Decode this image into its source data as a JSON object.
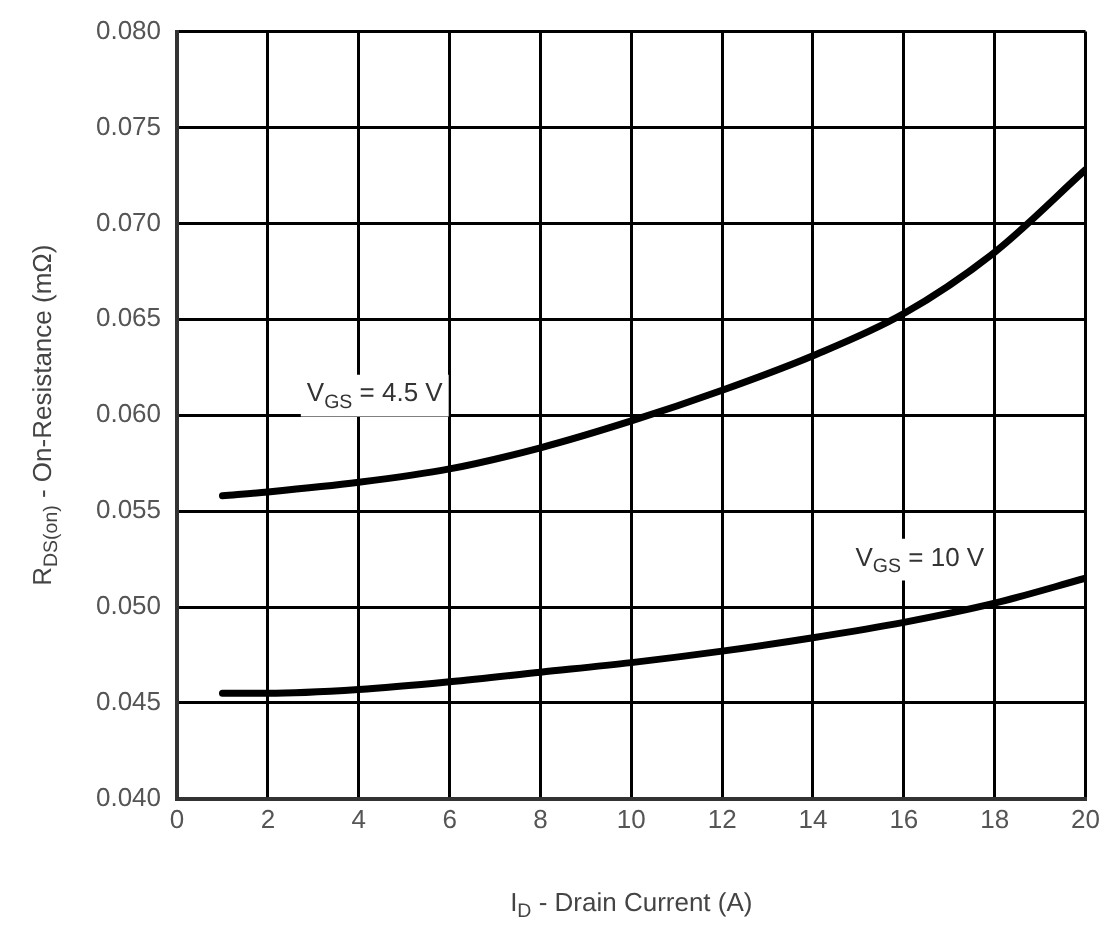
{
  "chart_data": {
    "type": "line",
    "xlabel": "I$_{D}$ - Drain Current (A)",
    "ylabel": "R$_{DS(on)}$ - On-Resistance (mΩ)",
    "x": [
      1,
      2,
      4,
      6,
      8,
      10,
      12,
      14,
      16,
      18,
      20
    ],
    "series": [
      {
        "name": "V$_{GS}$ = 4.5 V",
        "color": "#000000",
        "values": [
          0.0558,
          0.056,
          0.0565,
          0.0572,
          0.0583,
          0.0597,
          0.0613,
          0.0631,
          0.0653,
          0.0685,
          0.0728
        ]
      },
      {
        "name": "V$_{GS}$ = 10 V",
        "color": "#000000",
        "values": [
          0.0455,
          0.0455,
          0.0457,
          0.0461,
          0.0466,
          0.0471,
          0.0477,
          0.0484,
          0.0492,
          0.0502,
          0.0515
        ]
      }
    ],
    "xlim": [
      0,
      20
    ],
    "xticks": [
      0,
      2,
      4,
      6,
      8,
      10,
      12,
      14,
      16,
      18,
      20
    ],
    "ylim": [
      0.04,
      0.08
    ],
    "yticks": [
      {
        "value": 0.04,
        "label": "0.040"
      },
      {
        "value": 0.045,
        "label": "0.045"
      },
      {
        "value": 0.05,
        "label": "0.050"
      },
      {
        "value": 0.055,
        "label": "0.055"
      },
      {
        "value": 0.06,
        "label": "0.060"
      },
      {
        "value": 0.065,
        "label": "0.065"
      },
      {
        "value": 0.07,
        "label": "0.070"
      },
      {
        "value": 0.075,
        "label": "0.075"
      },
      {
        "value": 0.08,
        "label": "0.080"
      }
    ],
    "grid": true,
    "legend": false,
    "marker": "none",
    "line_style": "solid"
  }
}
